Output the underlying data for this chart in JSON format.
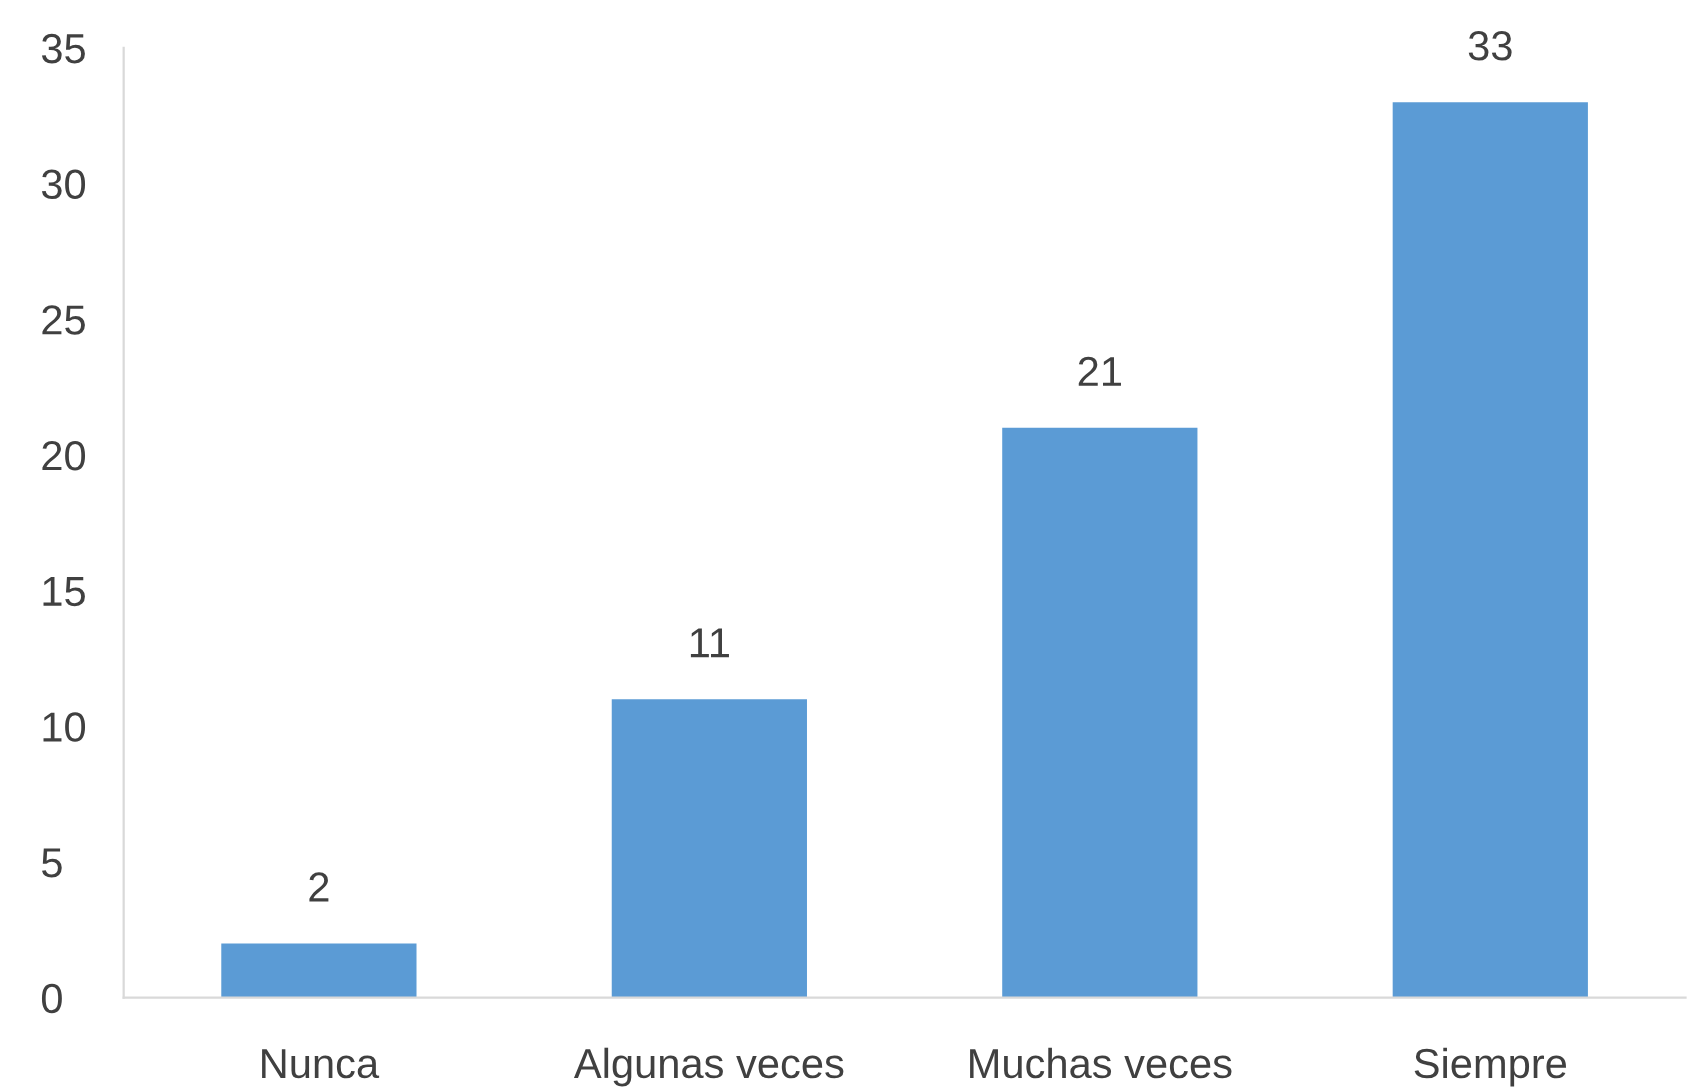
{
  "chart_data": {
    "type": "bar",
    "categories": [
      "Nunca",
      "Algunas veces",
      "Muchas veces",
      "Siempre"
    ],
    "values": [
      2,
      11,
      21,
      33
    ],
    "color": "#5b9bd5",
    "ylim": [
      0,
      35
    ],
    "yticks": [
      0,
      5,
      10,
      15,
      20,
      25,
      30,
      35
    ],
    "data_labels": true,
    "grid": false,
    "legend": false
  }
}
